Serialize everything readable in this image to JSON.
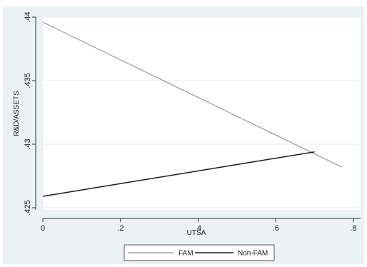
{
  "chart_data": {
    "type": "line",
    "title": "",
    "xlabel": "UTSA",
    "ylabel": "R&D/ASSETS",
    "xlim": [
      0,
      0.8
    ],
    "ylim": [
      0.425,
      0.44
    ],
    "x_ticks": [
      {
        "value": 0,
        "label": "0"
      },
      {
        "value": 0.2,
        "label": ".2"
      },
      {
        "value": 0.4,
        "label": ".4"
      },
      {
        "value": 0.6,
        "label": ".6"
      },
      {
        "value": 0.8,
        "label": ".8"
      }
    ],
    "y_ticks": [
      {
        "value": 0.425,
        "label": ".425"
      },
      {
        "value": 0.43,
        "label": ".43"
      },
      {
        "value": 0.435,
        "label": ".435"
      },
      {
        "value": 0.44,
        "label": ".44"
      }
    ],
    "grid": "horizontal",
    "legend_position": "bottom",
    "series": [
      {
        "name": "FAM",
        "color": "#a0a0a0",
        "x": [
          0,
          0.77
        ],
        "y": [
          0.4396,
          0.4282
        ]
      },
      {
        "name": "Non-FAM",
        "color": "#1a1a1a",
        "x": [
          0,
          0.7
        ],
        "y": [
          0.4259,
          0.4294
        ]
      }
    ]
  },
  "colors": {
    "outer_background": "#eaf2f3",
    "plot_background": "#ffffff",
    "grid": "#e5ecee",
    "axis": "#333333"
  }
}
